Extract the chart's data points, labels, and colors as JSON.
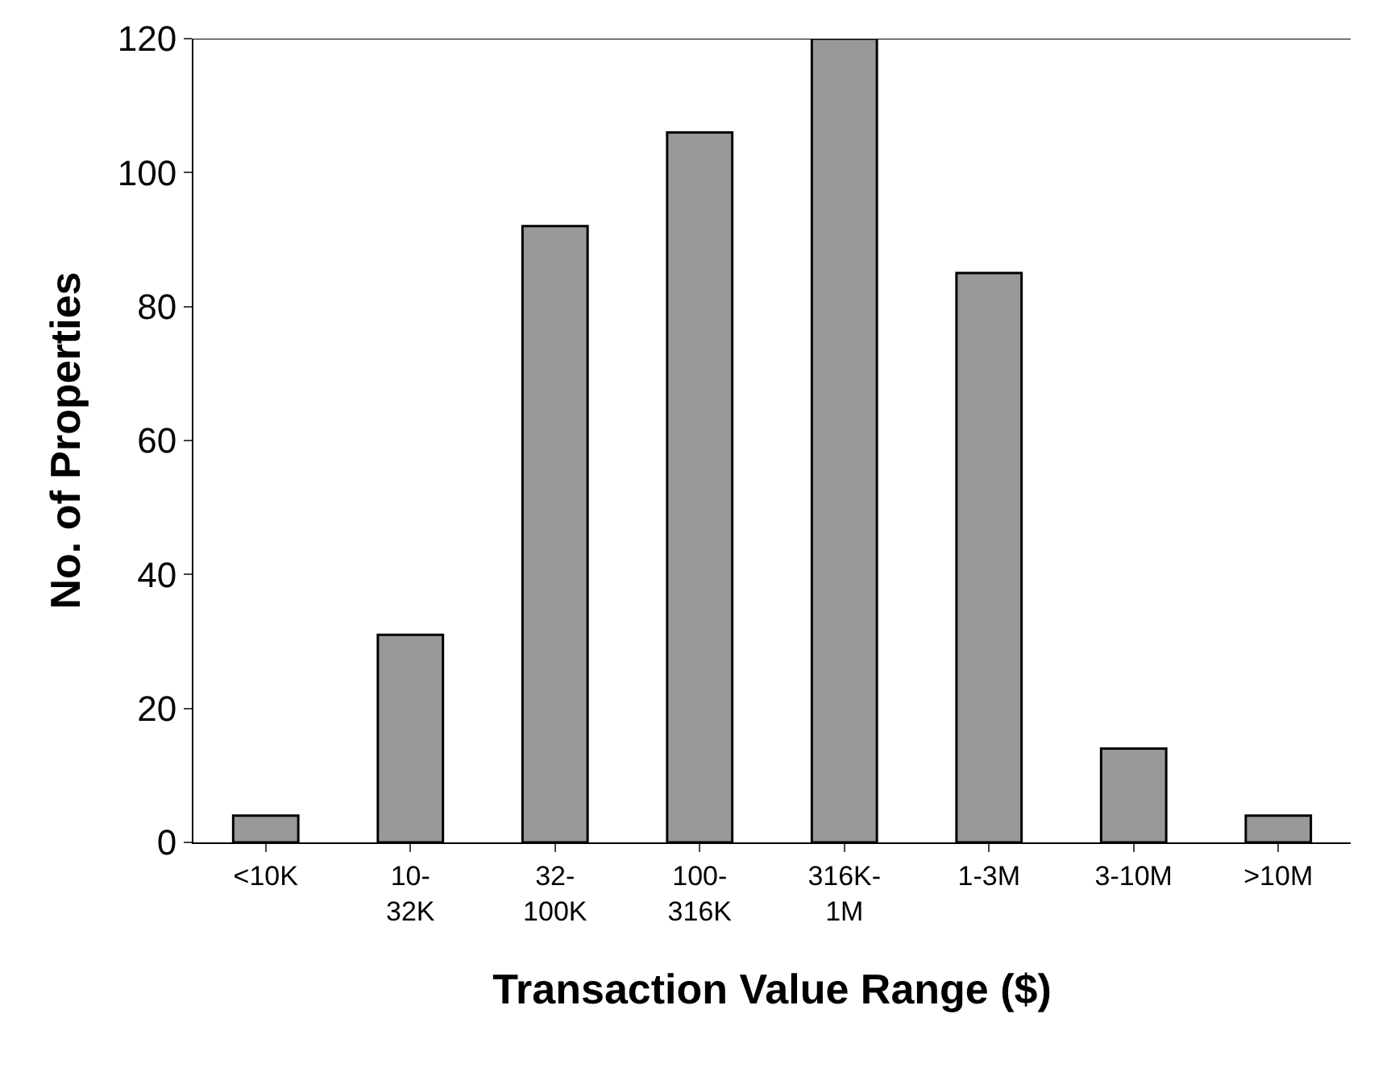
{
  "chart_data": {
    "type": "bar",
    "xlabel": "Transaction Value Range ($)",
    "ylabel": "No. of Properties",
    "categories": [
      "<10K",
      "10-\n32K",
      "32-\n100K",
      "100-\n316K",
      "316K-\n1M",
      "1-3M",
      "3-10M",
      ">10M"
    ],
    "values": [
      4,
      31,
      92,
      106,
      120,
      85,
      14,
      4
    ],
    "color": "#999999",
    "ylim": [
      0,
      120
    ],
    "yticks": [
      0,
      20,
      40,
      60,
      80,
      100,
      120
    ]
  }
}
